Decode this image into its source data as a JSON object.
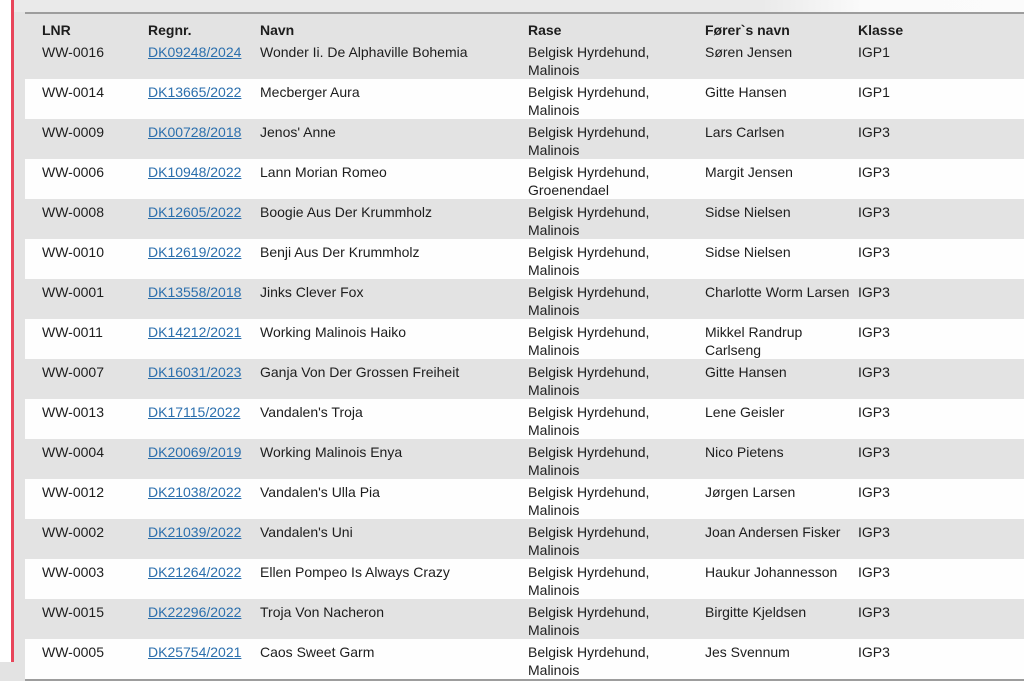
{
  "page": {
    "background": "#e3e3e3",
    "row_white": "#fefefe",
    "accent_red": "#e8455a",
    "link_color": "#2b6fad",
    "divider_color": "#9d9d9d"
  },
  "table": {
    "columns": [
      "LNR",
      "Regnr.",
      "Navn",
      "Rase",
      "Fører`s navn",
      "Klasse"
    ],
    "rows": [
      {
        "lnr": "WW-0016",
        "regnr": "DK09248/2024",
        "navn": "Wonder Ii. De Alphaville Bohemia",
        "rase": "Belgisk Hyrdehund, Malinois",
        "forer": "Søren Jensen",
        "klasse": "IGP1"
      },
      {
        "lnr": "WW-0014",
        "regnr": "DK13665/2022",
        "navn": "Mecberger Aura",
        "rase": "Belgisk Hyrdehund, Malinois",
        "forer": "Gitte Hansen",
        "klasse": "IGP1"
      },
      {
        "lnr": "WW-0009",
        "regnr": "DK00728/2018",
        "navn": "Jenos' Anne",
        "rase": "Belgisk Hyrdehund, Malinois",
        "forer": "Lars Carlsen",
        "klasse": "IGP3"
      },
      {
        "lnr": "WW-0006",
        "regnr": "DK10948/2022",
        "navn": "Lann Morian Romeo",
        "rase": "Belgisk Hyrdehund, Groenendael",
        "forer": "Margit Jensen",
        "klasse": "IGP3"
      },
      {
        "lnr": "WW-0008",
        "regnr": "DK12605/2022",
        "navn": "Boogie Aus Der Krummholz",
        "rase": "Belgisk Hyrdehund, Malinois",
        "forer": "Sidse Nielsen",
        "klasse": "IGP3"
      },
      {
        "lnr": "WW-0010",
        "regnr": "DK12619/2022",
        "navn": "Benji Aus Der Krummholz",
        "rase": "Belgisk Hyrdehund, Malinois",
        "forer": "Sidse Nielsen",
        "klasse": "IGP3"
      },
      {
        "lnr": "WW-0001",
        "regnr": "DK13558/2018",
        "navn": "Jinks Clever Fox",
        "rase": "Belgisk Hyrdehund, Malinois",
        "forer": "Charlotte Worm Larsen",
        "klasse": "IGP3"
      },
      {
        "lnr": "WW-0011",
        "regnr": "DK14212/2021",
        "navn": "Working Malinois Haiko",
        "rase": "Belgisk Hyrdehund, Malinois",
        "forer": "Mikkel Randrup Carlseng",
        "klasse": "IGP3"
      },
      {
        "lnr": "WW-0007",
        "regnr": "DK16031/2023",
        "navn": "Ganja Von Der Grossen Freiheit",
        "rase": "Belgisk Hyrdehund, Malinois",
        "forer": "Gitte Hansen",
        "klasse": "IGP3"
      },
      {
        "lnr": "WW-0013",
        "regnr": "DK17115/2022",
        "navn": "Vandalen's Troja",
        "rase": "Belgisk Hyrdehund, Malinois",
        "forer": "Lene Geisler",
        "klasse": "IGP3"
      },
      {
        "lnr": "WW-0004",
        "regnr": "DK20069/2019",
        "navn": "Working Malinois Enya",
        "rase": "Belgisk Hyrdehund, Malinois",
        "forer": "Nico Pietens",
        "klasse": "IGP3"
      },
      {
        "lnr": "WW-0012",
        "regnr": "DK21038/2022",
        "navn": "Vandalen's Ulla Pia",
        "rase": "Belgisk Hyrdehund, Malinois",
        "forer": "Jørgen Larsen",
        "klasse": "IGP3"
      },
      {
        "lnr": "WW-0002",
        "regnr": "DK21039/2022",
        "navn": "Vandalen's Uni",
        "rase": "Belgisk Hyrdehund, Malinois",
        "forer": "Joan Andersen Fisker",
        "klasse": "IGP3"
      },
      {
        "lnr": "WW-0003",
        "regnr": "DK21264/2022",
        "navn": "Ellen Pompeo Is Always Crazy",
        "rase": "Belgisk Hyrdehund, Malinois",
        "forer": "Haukur Johannesson",
        "klasse": "IGP3"
      },
      {
        "lnr": "WW-0015",
        "regnr": "DK22296/2022",
        "navn": "Troja Von Nacheron",
        "rase": "Belgisk Hyrdehund, Malinois",
        "forer": "Birgitte Kjeldsen",
        "klasse": "IGP3"
      },
      {
        "lnr": "WW-0005",
        "regnr": "DK25754/2021",
        "navn": "Caos Sweet Garm",
        "rase": "Belgisk Hyrdehund, Malinois",
        "forer": "Jes Svennum",
        "klasse": "IGP3"
      }
    ]
  }
}
